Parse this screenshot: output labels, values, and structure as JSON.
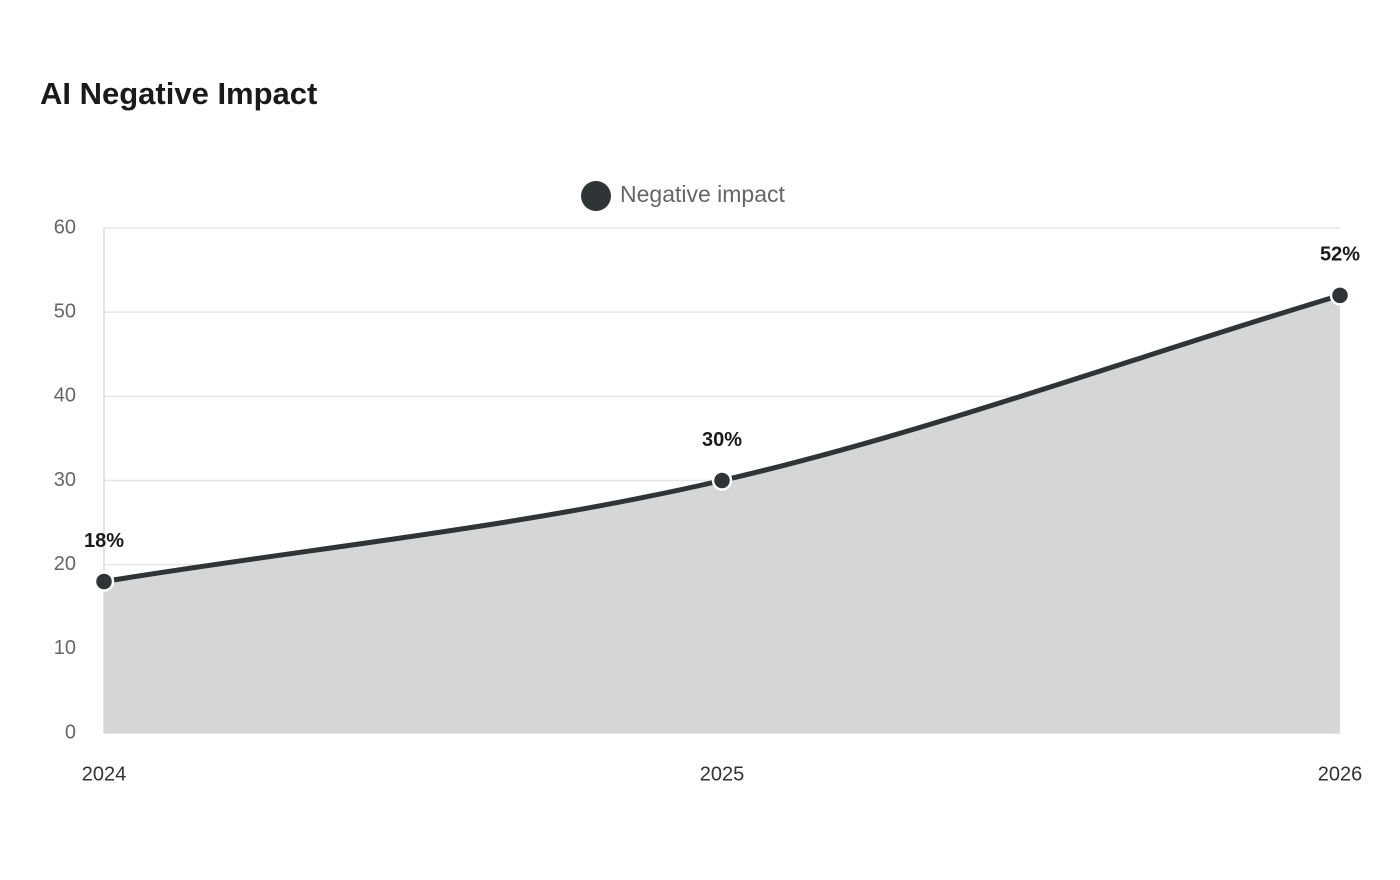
{
  "chart_data": {
    "type": "area",
    "title": "AI Negative Impact",
    "categories": [
      "2024",
      "2025",
      "2026"
    ],
    "series": [
      {
        "name": "Negative impact",
        "color": "#2f3537",
        "fill": "#d5d7d7",
        "values": [
          18,
          30,
          52
        ],
        "value_labels": [
          "18%",
          "30%",
          "52%"
        ]
      }
    ],
    "ylim": [
      0,
      60
    ],
    "yticks": [
      0,
      10,
      20,
      30,
      40,
      50,
      60
    ],
    "grid": true,
    "legend": "top"
  }
}
